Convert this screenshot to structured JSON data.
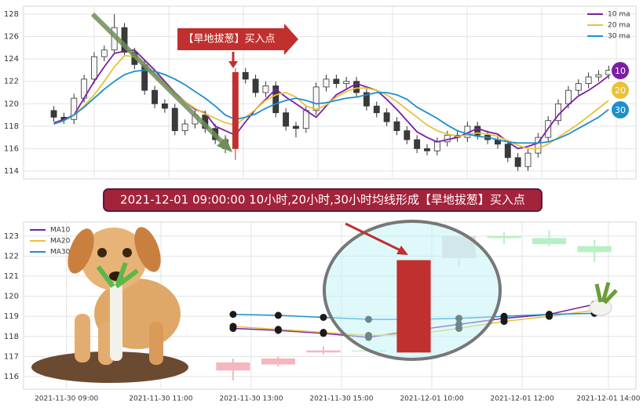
{
  "chart_data": [
    {
      "type": "candlestick",
      "annotation": "【旱地拔葱】买入点",
      "ylim": [
        113.3,
        128.7
      ],
      "yticks": [
        114,
        116,
        118,
        120,
        122,
        124,
        126,
        128
      ],
      "xlim": [
        -3,
        57.7
      ],
      "grid": true,
      "legend": "upper right",
      "up_color": "#f7f7f7",
      "down_color": "#3a3a3a",
      "edge_color": "#333333",
      "highlight": {
        "index": 18,
        "color": "#c0302e"
      },
      "open": [
        119.4,
        118.8,
        118.6,
        120.5,
        122.2,
        124.2,
        124.8,
        126.8,
        124.6,
        123.5,
        121.2,
        120.0,
        119.6,
        117.6,
        118.2,
        119.0,
        117.8,
        116.8,
        116.0,
        122.8,
        122.2,
        121.0,
        121.6,
        119.2,
        118.0,
        117.8,
        119.4,
        121.5,
        122.2,
        121.8,
        122.0,
        121.0,
        119.8,
        119.2,
        118.4,
        117.6,
        116.8,
        116.0,
        115.8,
        116.6,
        117.2,
        117.0,
        118.0,
        117.2,
        116.8,
        116.4,
        115.2,
        114.4,
        115.6,
        117.0,
        118.5,
        120.0,
        121.2,
        121.8,
        122.4,
        122.6
      ],
      "high": [
        119.8,
        119.2,
        120.9,
        122.6,
        124.6,
        125.2,
        128.0,
        127.2,
        125.0,
        123.9,
        121.6,
        120.4,
        120.0,
        118.6,
        119.4,
        119.4,
        118.2,
        117.2,
        123.2,
        123.2,
        122.6,
        122.0,
        122.0,
        119.6,
        118.4,
        119.8,
        121.9,
        122.6,
        122.6,
        122.4,
        122.4,
        121.4,
        120.2,
        119.6,
        118.8,
        118.0,
        117.2,
        116.4,
        117.0,
        117.6,
        117.6,
        118.4,
        118.4,
        117.6,
        117.2,
        116.8,
        115.6,
        116.0,
        117.4,
        118.9,
        120.4,
        121.6,
        122.2,
        122.8,
        123.0,
        123.4
      ],
      "low": [
        118.4,
        118.2,
        118.2,
        120.1,
        121.8,
        123.8,
        124.4,
        124.2,
        123.1,
        120.8,
        119.6,
        119.2,
        117.2,
        117.2,
        117.8,
        117.4,
        116.4,
        115.6,
        115.0,
        121.8,
        120.6,
        120.6,
        118.8,
        117.6,
        117.0,
        117.4,
        119.0,
        121.1,
        121.4,
        121.4,
        120.6,
        119.4,
        118.8,
        118.0,
        117.2,
        116.4,
        115.6,
        115.4,
        115.4,
        116.2,
        116.6,
        116.6,
        116.8,
        116.4,
        116.0,
        114.8,
        114.0,
        114.0,
        115.2,
        116.6,
        118.1,
        119.6,
        120.8,
        121.4,
        122.0,
        122.2
      ],
      "close": [
        118.8,
        118.6,
        120.5,
        122.2,
        124.2,
        124.8,
        126.8,
        124.6,
        123.5,
        121.2,
        120.0,
        119.6,
        117.6,
        118.2,
        119.0,
        117.8,
        116.8,
        116.0,
        122.8,
        122.2,
        121.0,
        121.6,
        119.2,
        118.0,
        117.8,
        119.4,
        121.5,
        122.2,
        121.8,
        122.0,
        121.0,
        119.8,
        119.2,
        118.4,
        117.6,
        116.8,
        116.0,
        115.8,
        116.6,
        117.2,
        117.0,
        118.0,
        117.2,
        116.8,
        116.4,
        115.2,
        114.4,
        115.6,
        117.0,
        118.5,
        120.0,
        121.2,
        121.8,
        122.4,
        122.6,
        123.0
      ],
      "series": [
        {
          "name": "10 ma",
          "color": "#7b1fa2",
          "values": [
            118.3,
            118.6,
            119.0,
            120.5,
            122.0,
            123.3,
            124.5,
            124.7,
            124.8,
            123.9,
            123.0,
            122.0,
            121.0,
            120.2,
            119.5,
            119.2,
            118.0,
            117.6,
            117.2,
            118.4,
            119.5,
            120.4,
            121.3,
            120.6,
            120.0,
            119.4,
            118.8,
            119.8,
            120.8,
            121.3,
            121.8,
            121.5,
            121.2,
            120.4,
            119.5,
            118.5,
            117.5,
            117.0,
            116.6,
            116.8,
            117.0,
            117.4,
            117.8,
            117.5,
            117.3,
            116.6,
            116.0,
            116.2,
            116.5,
            117.8,
            119.0,
            119.9,
            120.7,
            121.2,
            121.8,
            122.5
          ]
        },
        {
          "name": "20 ma",
          "color": "#e8c23a",
          "values": [
            118.2,
            118.5,
            119.0,
            119.8,
            120.8,
            122.0,
            123.3,
            124.3,
            124.2,
            123.5,
            122.6,
            121.7,
            120.9,
            120.2,
            119.6,
            119.1,
            118.7,
            118.3,
            118.1,
            118.8,
            119.5,
            120.3,
            120.8,
            121.0,
            120.6,
            119.8,
            119.5,
            119.9,
            120.6,
            121.1,
            121.4,
            121.4,
            121.2,
            120.8,
            120.2,
            119.5,
            118.8,
            118.1,
            117.6,
            117.3,
            117.1,
            117.2,
            117.4,
            117.3,
            117.1,
            116.7,
            116.3,
            116.0,
            116.0,
            116.4,
            117.0,
            117.6,
            118.2,
            118.9,
            119.6,
            120.3
          ]
        },
        {
          "name": "30 ma",
          "color": "#1f8fc9",
          "values": [
            118.2,
            118.5,
            119.0,
            119.7,
            120.5,
            121.3,
            122.0,
            122.6,
            122.9,
            123.0,
            122.9,
            122.6,
            122.2,
            121.7,
            121.1,
            120.5,
            119.8,
            119.0,
            118.6,
            118.8,
            119.1,
            119.6,
            120.0,
            120.3,
            120.5,
            120.3,
            120.0,
            120.1,
            120.3,
            120.5,
            120.6,
            120.8,
            121.0,
            121.0,
            120.8,
            120.4,
            119.7,
            119.2,
            118.7,
            118.1,
            117.6,
            117.3,
            117.1,
            117.0,
            116.8,
            116.6,
            116.5,
            116.5,
            116.5,
            116.6,
            116.9,
            117.3,
            117.8,
            118.3,
            118.8,
            119.5
          ]
        }
      ],
      "badges": [
        {
          "label": "10",
          "color": "#7b1fa2"
        },
        {
          "label": "20",
          "color": "#e8c23a"
        },
        {
          "label": "30",
          "color": "#1f8fc9"
        }
      ]
    },
    {
      "type": "candlestick",
      "title": "2021-12-01 09:00:00 10小时,20小时,30小时均线形成【旱地拔葱】买入点",
      "ylim": [
        115.37,
        123.7
      ],
      "yticks": [
        116,
        117,
        118,
        119,
        120,
        121,
        122,
        123
      ],
      "xlim": [
        -4.64,
        8.92
      ],
      "xticks": [
        {
          "value": -3.69,
          "label": "2021-11-30 09:00"
        },
        {
          "value": -1.6,
          "label": "2021-11-30 11:00"
        },
        {
          "value": 0.4,
          "label": "2021-11-30 13:00"
        },
        {
          "value": 2.4,
          "label": "2021-11-30 15:00"
        },
        {
          "value": 4.4,
          "label": "2021-12-01 10:00"
        },
        {
          "value": 6.4,
          "label": "2021-12-01 12:00"
        },
        {
          "value": 8.31,
          "label": "2021-12-01 14:00"
        }
      ],
      "grid": true,
      "legend": "upper left",
      "colors": [
        "#f4b6bf",
        "#f4b6bf",
        "#f4b6bf",
        "#b7f0c4",
        "#c0302e",
        "#e2dadc",
        "#b7f0c4",
        "#b7f0c4",
        "#b7f0c4"
      ],
      "open": [
        116.3,
        116.6,
        117.2,
        117.3,
        117.2,
        121.9,
        123.0,
        122.9,
        122.5
      ],
      "high": [
        116.9,
        117.0,
        117.5,
        117.35,
        121.8,
        123.0,
        123.2,
        123.3,
        122.8
      ],
      "low": [
        115.8,
        116.5,
        117.1,
        117.2,
        117.2,
        121.5,
        122.6,
        122.5,
        121.7
      ],
      "close": [
        116.7,
        116.9,
        117.3,
        117.25,
        121.8,
        123.0,
        122.9,
        122.6,
        122.2
      ],
      "series": [
        {
          "name": "MA10",
          "color": "#7b1fa2",
          "values": [
            118.4,
            118.3,
            118.15,
            117.95,
            118.3,
            118.6,
            118.9,
            119.1,
            119.6
          ]
        },
        {
          "name": "MA20",
          "color": "#e8c23a",
          "values": [
            118.5,
            118.35,
            118.2,
            118.05,
            118.1,
            118.4,
            118.75,
            119.0,
            119.3
          ]
        },
        {
          "name": "MA30",
          "color": "#1f8fc9",
          "values": [
            119.1,
            119.05,
            118.95,
            118.85,
            118.85,
            118.9,
            119.0,
            119.1,
            119.15
          ]
        }
      ]
    }
  ]
}
